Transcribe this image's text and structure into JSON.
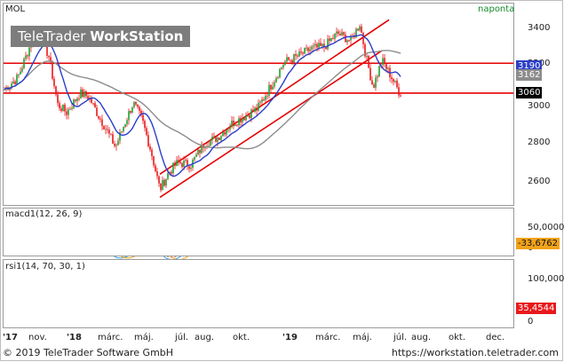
{
  "symbol": "MOL",
  "interval": "naponta",
  "watermark": {
    "brand": "TeleTrader ",
    "product": "WorkStation"
  },
  "price_axis": {
    "ticks": [
      "3400",
      "3200",
      "3000",
      "2800",
      "2600"
    ]
  },
  "price_tags": {
    "upper": "3190",
    "ma": "3162",
    "last": "3060"
  },
  "macd": {
    "label": "macd1(12, 26, 9)",
    "ticks": [
      "50,0000",
      "0"
    ],
    "value": "-33,6762"
  },
  "rsi": {
    "label": "rsi1(14, 70, 30, 1)",
    "ticks": [
      "100,0000",
      "0"
    ],
    "value": "35,4544"
  },
  "x_axis": {
    "labels": [
      "'17",
      "nov.",
      "'18",
      "márc.",
      "máj.",
      "júl.",
      "aug.",
      "okt.",
      "'19",
      "márc.",
      "máj.",
      "júl.",
      "aug.",
      "okt.",
      "dec."
    ]
  },
  "footer": {
    "copyright": "© 2019 TeleTrader Software GmbH",
    "url": "https://workstation.teletrader.com"
  },
  "colors": {
    "candles": "#e8191b",
    "bull": "#17a52f",
    "ma_short": "#2a3ec8",
    "ma_long": "#8c8c8c",
    "trend": "#e60000",
    "rsi_ob": "#bff0bd",
    "rsi_os": "#f7b3b3"
  }
}
